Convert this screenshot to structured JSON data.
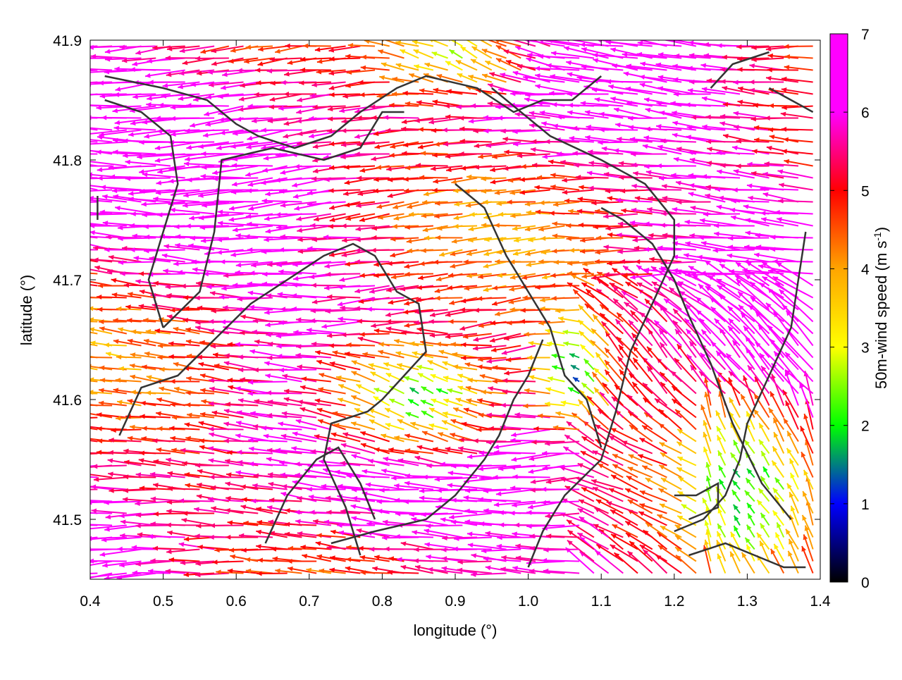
{
  "chart_data": {
    "type": "vector-field",
    "xlabel": "longitude (°)",
    "ylabel": "latitude (°)",
    "xlim": [
      0.4,
      1.4
    ],
    "ylim": [
      41.45,
      41.9
    ],
    "x_ticks": [
      "0.4",
      "0.5",
      "0.6",
      "0.7",
      "0.8",
      "0.9",
      "1.0",
      "1.1",
      "1.2",
      "1.3",
      "1.4"
    ],
    "y_ticks": [
      "41.5",
      "41.6",
      "41.7",
      "41.8",
      "41.9"
    ],
    "x_tick_values": [
      0.4,
      0.5,
      0.6,
      0.7,
      0.8,
      0.9,
      1.0,
      1.1,
      1.2,
      1.3,
      1.4
    ],
    "y_tick_values": [
      41.5,
      41.6,
      41.7,
      41.8,
      41.9
    ],
    "colorbar": {
      "label_prefix": "50m-wind speed (m s",
      "label_sup": "-1",
      "label_suffix": ")",
      "range": [
        0,
        7
      ],
      "ticks": [
        "0",
        "1",
        "2",
        "3",
        "4",
        "5",
        "6",
        "7"
      ],
      "tick_values": [
        0,
        1,
        2,
        3,
        4,
        5,
        6,
        7
      ],
      "palette": [
        "#000000",
        "#0000ff",
        "#00ff00",
        "#ffff00",
        "#ffa500",
        "#ff0000",
        "#ff00ff"
      ]
    },
    "grid": false,
    "legend": "none",
    "field_sampling": {
      "grid_spacing_deg": [
        0.02,
        0.01
      ],
      "speed_zones": [
        {
          "name": "calm core west",
          "center": [
            0.86,
            41.6
          ],
          "radius": [
            0.11,
            0.045
          ],
          "speed": 1.6
        },
        {
          "name": "calm core east",
          "center": [
            1.07,
            41.62
          ],
          "radius": [
            0.04,
            0.04
          ],
          "speed": 1.0
        },
        {
          "name": "calm southeast",
          "center": [
            1.3,
            41.52
          ],
          "radius": [
            0.07,
            0.06
          ],
          "speed": 2.0
        },
        {
          "name": "calm north",
          "center": [
            0.92,
            41.885
          ],
          "radius": [
            0.1,
            0.03
          ],
          "speed": 3.0
        }
      ]
    },
    "boundaries": [
      [
        [
          0.42,
          41.87
        ],
        [
          0.5,
          41.86
        ],
        [
          0.56,
          41.85
        ],
        [
          0.6,
          41.83
        ],
        [
          0.63,
          41.82
        ],
        [
          0.68,
          41.81
        ],
        [
          0.73,
          41.82
        ],
        [
          0.77,
          41.84
        ],
        [
          0.82,
          41.86
        ],
        [
          0.86,
          41.87
        ],
        [
          0.93,
          41.86
        ],
        [
          0.98,
          41.84
        ],
        [
          1.02,
          41.85
        ],
        [
          1.06,
          41.85
        ],
        [
          1.1,
          41.87
        ]
      ],
      [
        [
          0.42,
          41.85
        ],
        [
          0.47,
          41.84
        ],
        [
          0.51,
          41.82
        ],
        [
          0.52,
          41.78
        ],
        [
          0.5,
          41.74
        ],
        [
          0.48,
          41.7
        ],
        [
          0.5,
          41.66
        ]
      ],
      [
        [
          0.5,
          41.66
        ],
        [
          0.55,
          41.69
        ],
        [
          0.57,
          41.74
        ],
        [
          0.58,
          41.8
        ],
        [
          0.65,
          41.81
        ],
        [
          0.72,
          41.8
        ],
        [
          0.77,
          41.81
        ],
        [
          0.8,
          41.84
        ],
        [
          0.83,
          41.84
        ]
      ],
      [
        [
          0.44,
          41.57
        ],
        [
          0.47,
          41.61
        ],
        [
          0.52,
          41.62
        ],
        [
          0.57,
          41.65
        ],
        [
          0.62,
          41.68
        ],
        [
          0.67,
          41.7
        ],
        [
          0.72,
          41.72
        ],
        [
          0.76,
          41.73
        ],
        [
          0.79,
          41.72
        ],
        [
          0.82,
          41.69
        ],
        [
          0.85,
          41.68
        ],
        [
          0.86,
          41.64
        ],
        [
          0.83,
          41.62
        ],
        [
          0.8,
          41.6
        ],
        [
          0.78,
          41.59
        ],
        [
          0.73,
          41.58
        ],
        [
          0.72,
          41.55
        ],
        [
          0.75,
          41.51
        ],
        [
          0.77,
          41.47
        ]
      ],
      [
        [
          0.73,
          41.48
        ],
        [
          0.79,
          41.49
        ],
        [
          0.86,
          41.5
        ],
        [
          0.9,
          41.52
        ],
        [
          0.94,
          41.55
        ],
        [
          0.96,
          41.57
        ],
        [
          0.98,
          41.6
        ],
        [
          1.0,
          41.62
        ],
        [
          1.02,
          41.65
        ]
      ],
      [
        [
          0.9,
          41.78
        ],
        [
          0.94,
          41.76
        ],
        [
          0.97,
          41.72
        ],
        [
          1.0,
          41.69
        ],
        [
          1.03,
          41.66
        ],
        [
          1.05,
          41.62
        ],
        [
          1.08,
          41.6
        ],
        [
          1.1,
          41.56
        ]
      ],
      [
        [
          0.95,
          41.86
        ],
        [
          1.03,
          41.82
        ],
        [
          1.1,
          41.8
        ],
        [
          1.16,
          41.78
        ],
        [
          1.2,
          41.75
        ],
        [
          1.2,
          41.72
        ],
        [
          1.17,
          41.68
        ],
        [
          1.14,
          41.64
        ],
        [
          1.12,
          41.59
        ],
        [
          1.1,
          41.55
        ],
        [
          1.05,
          41.52
        ],
        [
          1.02,
          41.49
        ],
        [
          1.0,
          41.46
        ]
      ],
      [
        [
          1.2,
          41.49
        ],
        [
          1.24,
          41.5
        ],
        [
          1.27,
          41.52
        ],
        [
          1.29,
          41.55
        ],
        [
          1.3,
          41.58
        ],
        [
          1.33,
          41.62
        ],
        [
          1.36,
          41.66
        ],
        [
          1.37,
          41.7
        ],
        [
          1.38,
          41.74
        ]
      ],
      [
        [
          1.1,
          41.76
        ],
        [
          1.13,
          41.75
        ],
        [
          1.17,
          41.73
        ],
        [
          1.2,
          41.7
        ],
        [
          1.22,
          41.67
        ],
        [
          1.25,
          41.63
        ],
        [
          1.28,
          41.58
        ],
        [
          1.32,
          41.53
        ],
        [
          1.36,
          41.5
        ]
      ],
      [
        [
          0.64,
          41.48
        ],
        [
          0.67,
          41.52
        ],
        [
          0.71,
          41.55
        ],
        [
          0.74,
          41.56
        ],
        [
          0.77,
          41.53
        ],
        [
          0.79,
          41.5
        ]
      ],
      [
        [
          1.25,
          41.86
        ],
        [
          1.28,
          41.88
        ],
        [
          1.33,
          41.89
        ]
      ],
      [
        [
          1.33,
          41.86
        ],
        [
          1.36,
          41.85
        ],
        [
          1.39,
          41.84
        ]
      ],
      [
        [
          0.41,
          41.77
        ],
        [
          0.41,
          41.75
        ]
      ],
      [
        [
          1.2,
          41.52
        ],
        [
          1.23,
          41.52
        ],
        [
          1.26,
          41.53
        ],
        [
          1.26,
          41.51
        ],
        [
          1.22,
          41.5
        ]
      ],
      [
        [
          1.22,
          41.47
        ],
        [
          1.27,
          41.48
        ],
        [
          1.31,
          41.47
        ],
        [
          1.35,
          41.46
        ],
        [
          1.38,
          41.46
        ]
      ]
    ]
  }
}
